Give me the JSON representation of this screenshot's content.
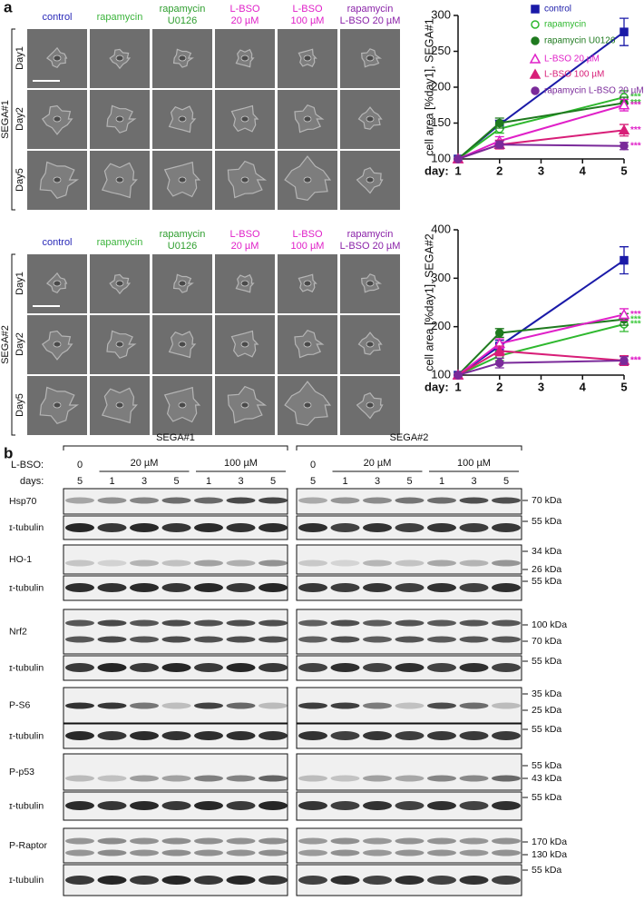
{
  "panel_labels": [
    "a",
    "b"
  ],
  "micrographs": [
    {
      "group": "SEGA#1",
      "columns": [
        {
          "lines": [
            "control"
          ],
          "color": "#2a2ab8"
        },
        {
          "lines": [
            "rapamycin"
          ],
          "color": "#3cb43c"
        },
        {
          "lines": [
            "rapamycin",
            "U0126"
          ],
          "color": "#2e9e2e"
        },
        {
          "lines": [
            "L-BSO",
            "20 µM"
          ],
          "color": "#e020c8"
        },
        {
          "lines": [
            "L-BSO",
            "100 µM"
          ],
          "color": "#e020c8"
        },
        {
          "lines": [
            "rapamycin",
            "L-BSO 20 µM"
          ],
          "color": "#8a22a8"
        }
      ],
      "rows": [
        "Day1",
        "Day2",
        "Day5"
      ]
    },
    {
      "group": "SEGA#2",
      "columns": [
        {
          "lines": [
            "control"
          ],
          "color": "#2a2ab8"
        },
        {
          "lines": [
            "rapamycin"
          ],
          "color": "#3cb43c"
        },
        {
          "lines": [
            "rapamycin",
            "U0126"
          ],
          "color": "#2e9e2e"
        },
        {
          "lines": [
            "L-BSO",
            "20 µM"
          ],
          "color": "#e020c8"
        },
        {
          "lines": [
            "L-BSO",
            "100 µM"
          ],
          "color": "#e020c8"
        },
        {
          "lines": [
            "rapamycin",
            "L-BSO 20 µM"
          ],
          "color": "#8a22a8"
        }
      ],
      "rows": [
        "Day1",
        "Day2",
        "Day5"
      ]
    }
  ],
  "chart_data": [
    {
      "type": "line",
      "ylabel": "cell area [%day1], SEGA#1",
      "xlabel": "day:",
      "x": [
        1,
        2,
        5
      ],
      "xlim": [
        1,
        5
      ],
      "xticks": [
        1,
        2,
        3,
        4,
        5
      ],
      "ylim": [
        100,
        300
      ],
      "yticks": [
        100,
        150,
        200,
        250,
        300
      ],
      "legend": true,
      "series": [
        {
          "name": "control",
          "color": "#1a1aa8",
          "marker": "square",
          "values": [
            100,
            148,
            277
          ],
          "errors": [
            0,
            6,
            19
          ]
        },
        {
          "name": "rapamycin",
          "color": "#2eb82e",
          "marker": "circle-open",
          "values": [
            100,
            142,
            186
          ],
          "errors": [
            0,
            6,
            9
          ],
          "note": "***",
          "note_color": "#3cc83c"
        },
        {
          "name": "rapamycin U0126",
          "color": "#1f7a1f",
          "marker": "circle",
          "values": [
            100,
            150,
            178
          ],
          "errors": [
            0,
            7,
            8
          ],
          "note": "***",
          "note_color": "#3cc83c"
        },
        {
          "name": "L-BSO 20 µM",
          "color": "#e020c8",
          "marker": "triangle-open",
          "values": [
            100,
            125,
            175
          ],
          "errors": [
            0,
            6,
            8
          ],
          "note": "***",
          "note_color": "#e020c8"
        },
        {
          "name": "L-BSO 100 µM",
          "color": "#d81e78",
          "marker": "triangle",
          "values": [
            100,
            120,
            140
          ],
          "errors": [
            0,
            6,
            8
          ],
          "note": "***",
          "note_color": "#e020c8"
        },
        {
          "name": "rapamycin L-BSO 20 µM",
          "color": "#7a2a9a",
          "marker": "circle",
          "values": [
            100,
            120,
            118
          ],
          "errors": [
            0,
            5,
            5
          ],
          "note": "***",
          "note_color": "#e020c8"
        }
      ]
    },
    {
      "type": "line",
      "ylabel": "cell area [%day1], SEGA#2",
      "xlabel": "day:",
      "x": [
        1,
        2,
        5
      ],
      "xlim": [
        1,
        5
      ],
      "xticks": [
        1,
        2,
        3,
        4,
        5
      ],
      "ylim": [
        100,
        400
      ],
      "yticks": [
        100,
        200,
        300,
        400
      ],
      "legend": false,
      "series": [
        {
          "name": "control",
          "color": "#1a1aa8",
          "marker": "square",
          "values": [
            100,
            160,
            337
          ],
          "errors": [
            0,
            12,
            28
          ]
        },
        {
          "name": "rapamycin",
          "color": "#2eb82e",
          "marker": "circle-open",
          "values": [
            100,
            140,
            205
          ],
          "errors": [
            0,
            10,
            15
          ],
          "note": "***",
          "note_color": "#3cc83c"
        },
        {
          "name": "rapamycin U0126",
          "color": "#1f7a1f",
          "marker": "circle",
          "values": [
            100,
            187,
            215
          ],
          "errors": [
            0,
            9,
            12
          ],
          "note": "***",
          "note_color": "#3cc83c"
        },
        {
          "name": "L-BSO 20 µM",
          "color": "#e020c8",
          "marker": "triangle-open",
          "values": [
            100,
            165,
            225
          ],
          "errors": [
            0,
            10,
            12
          ],
          "note": "***",
          "note_color": "#e020c8"
        },
        {
          "name": "L-BSO 100 µM",
          "color": "#d81e78",
          "marker": "triangle",
          "values": [
            100,
            150,
            130
          ],
          "errors": [
            0,
            10,
            10
          ],
          "note": "***",
          "note_color": "#e020c8"
        },
        {
          "name": "rapamycin L-BSO 20 µM",
          "color": "#7a2a9a",
          "marker": "circle",
          "values": [
            100,
            125,
            130
          ],
          "errors": [
            0,
            10,
            8
          ],
          "note": "***",
          "note_color": "#e020c8"
        }
      ]
    }
  ],
  "blots": {
    "groups": [
      "SEGA#1",
      "SEGA#2"
    ],
    "treatment_label": "L-BSO:",
    "doses": [
      "0",
      "20 µM",
      "100 µM"
    ],
    "days_label": "days:",
    "days": [
      "5",
      "1",
      "3",
      "5",
      "1",
      "3",
      "5"
    ],
    "rows": [
      {
        "name": "Hsp70",
        "markers": [
          "70 kDa"
        ]
      },
      {
        "name": "ɪ-tubulin",
        "markers": [
          "55 kDa"
        ]
      },
      {
        "name": "HO-1",
        "markers": [
          "34 kDa",
          "26 kDa"
        ]
      },
      {
        "name": "ɪ-tubulin",
        "markers": [
          "55 kDa"
        ]
      },
      {
        "name": "Nrf2",
        "markers": [
          "100 kDa",
          "70 kDa"
        ]
      },
      {
        "name": "ɪ-tubulin",
        "markers": [
          "55 kDa"
        ]
      },
      {
        "name": "P-S6",
        "markers": [
          "35 kDa",
          "25 kDa"
        ]
      },
      {
        "name": "ɪ-tubulin",
        "markers": [
          "55 kDa"
        ]
      },
      {
        "name": "P-p53",
        "markers": [
          "55 kDa",
          "43 kDa"
        ]
      },
      {
        "name": "ɪ-tubulin",
        "markers": [
          "55 kDa"
        ]
      },
      {
        "name": "P-Raptor",
        "markers": [
          "170 kDa",
          "130 kDa"
        ]
      },
      {
        "name": "ɪ-tubulin",
        "markers": [
          "55 kDa"
        ]
      }
    ]
  }
}
